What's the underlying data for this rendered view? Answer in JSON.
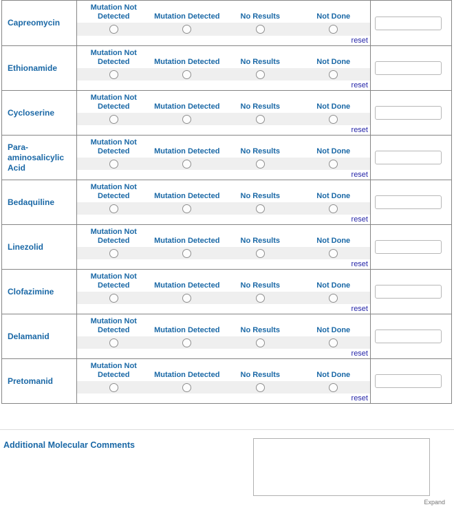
{
  "table": {
    "option_columns": [
      "Mutation Not\nDetected",
      "Mutation Detected",
      "No Results",
      "Not Done"
    ],
    "reset_label": "reset",
    "rows": [
      {
        "drug": "Capreomycin",
        "value": ""
      },
      {
        "drug": "Ethionamide",
        "value": ""
      },
      {
        "drug": "Cycloserine",
        "value": ""
      },
      {
        "drug": "Para-aminosalicylic Acid",
        "value": ""
      },
      {
        "drug": "Bedaquiline",
        "value": ""
      },
      {
        "drug": "Linezolid",
        "value": ""
      },
      {
        "drug": "Clofazimine",
        "value": ""
      },
      {
        "drug": "Delamanid",
        "value": ""
      },
      {
        "drug": "Pretomanid",
        "value": ""
      }
    ]
  },
  "comments": {
    "label": "Additional Molecular Comments",
    "value": "",
    "expand_label": "Expand"
  },
  "colors": {
    "label_blue": "#1a68a6",
    "reset_link_navy": "#2525a8",
    "radio_strip_gray": "#efefef",
    "table_border_gray": "#848484"
  }
}
